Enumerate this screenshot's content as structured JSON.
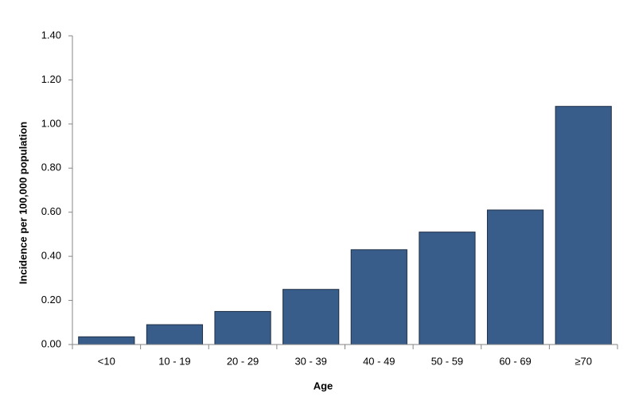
{
  "chart_data": {
    "type": "bar",
    "x_label": "Age",
    "y_label": "Incidence per 100,000 population",
    "categories": [
      "<10",
      "10 - 19",
      "20 - 29",
      "30 - 39",
      "40 - 49",
      "50 - 59",
      "60 - 69",
      "≥70"
    ],
    "values": [
      0.035,
      0.09,
      0.15,
      0.25,
      0.43,
      0.51,
      0.61,
      1.08
    ],
    "color": "#385d8a",
    "ylim": [
      0,
      1.4
    ],
    "yticks": [
      {
        "value": 0,
        "label": "0.00"
      },
      {
        "value": 0.2,
        "label": "0.20"
      },
      {
        "value": 0.4,
        "label": "0.40"
      },
      {
        "value": 0.6,
        "label": "0.60"
      },
      {
        "value": 0.8,
        "label": "0.80"
      },
      {
        "value": 1.0,
        "label": "1.00"
      },
      {
        "value": 1.2,
        "label": "1.20"
      },
      {
        "value": 1.4,
        "label": "1.40"
      }
    ],
    "grid": false
  }
}
